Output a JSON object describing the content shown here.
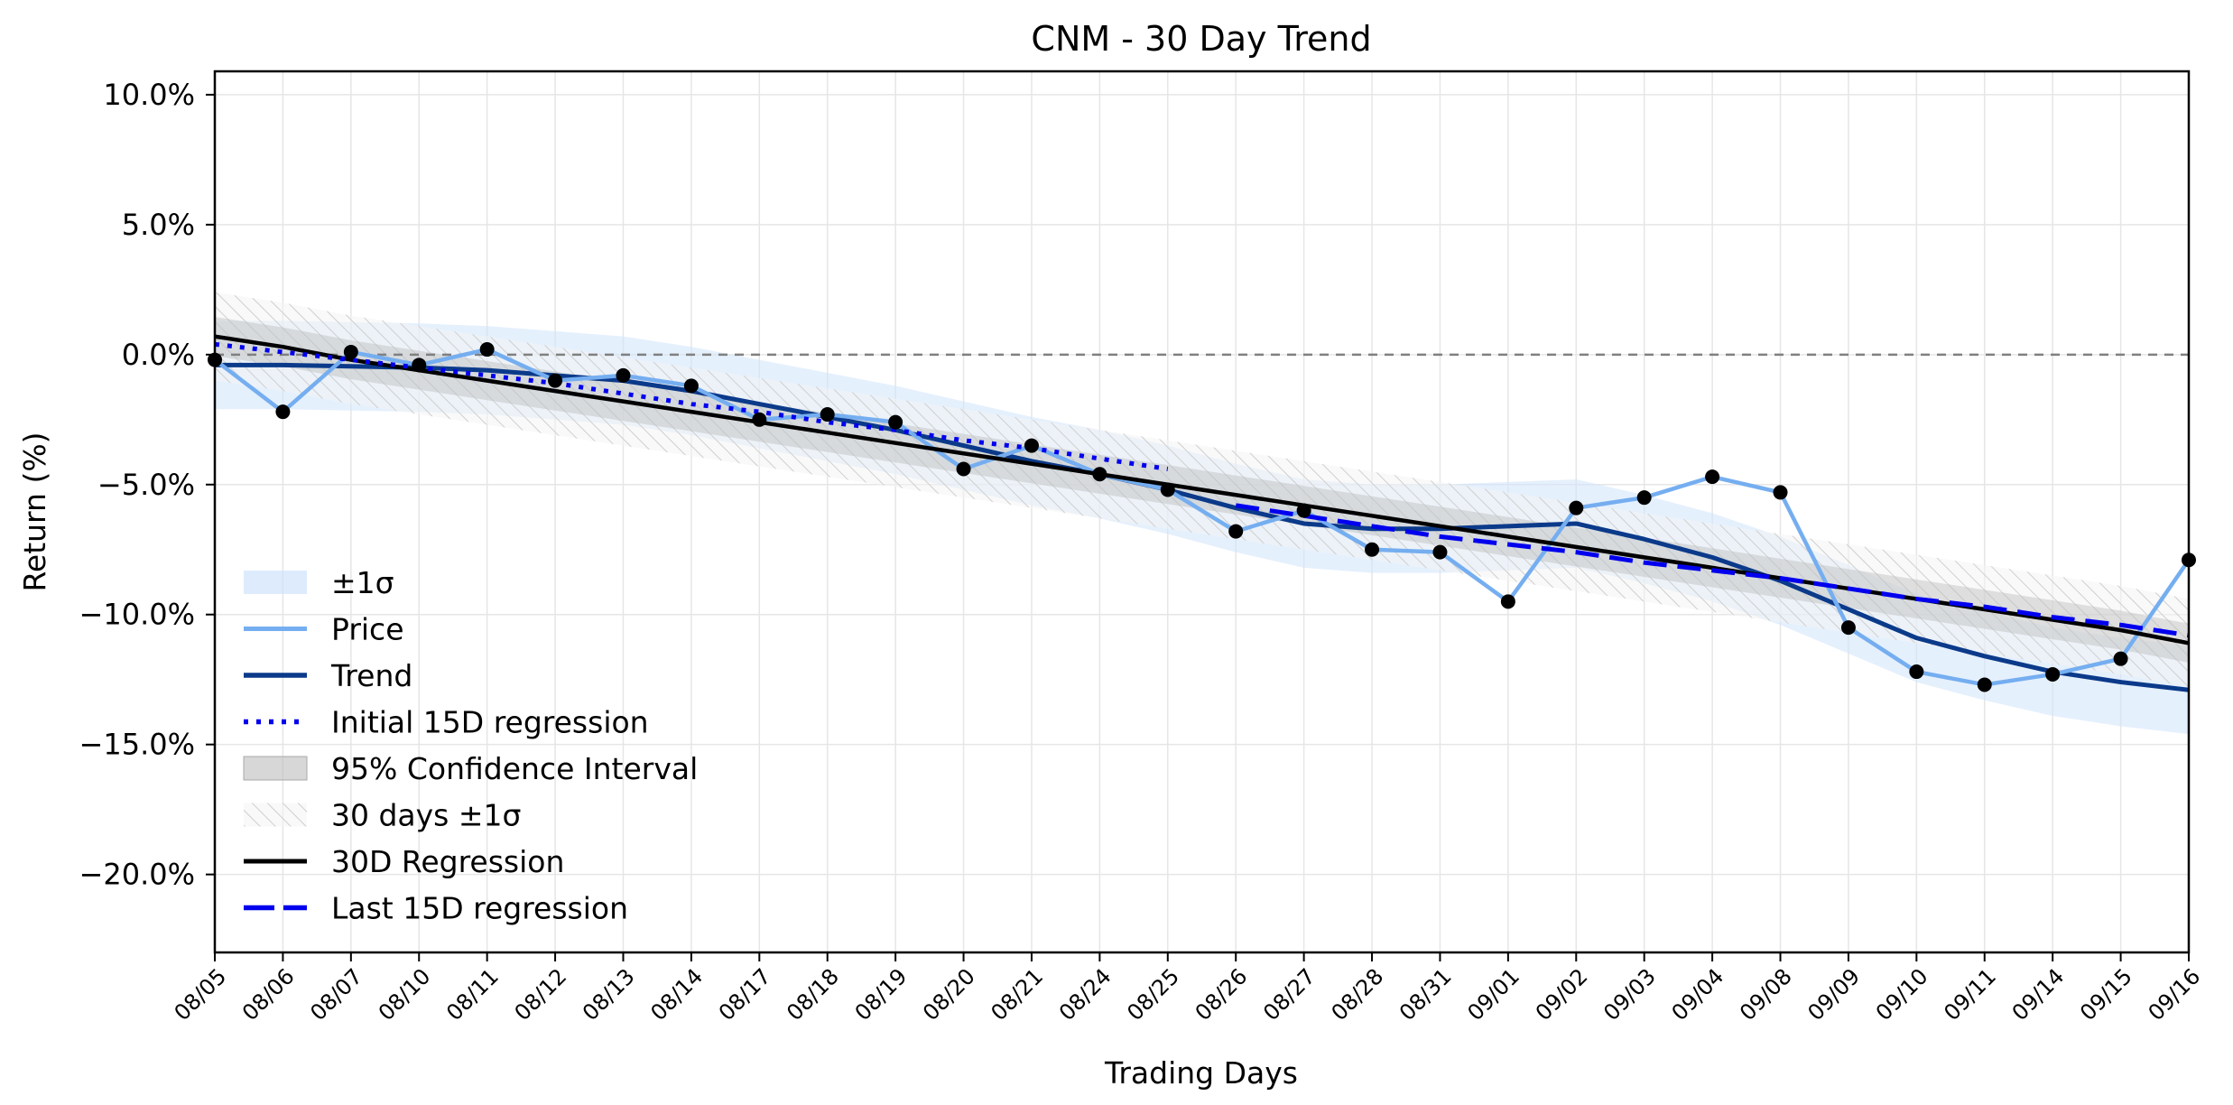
{
  "chart_data": {
    "type": "line",
    "title": "CNM - 30 Day Trend",
    "xlabel": "Trading Days",
    "ylabel": "Return (%)",
    "ylim": [
      -23,
      10.9
    ],
    "yticks": [
      10,
      5,
      0,
      -5,
      -10,
      -15,
      -20
    ],
    "ytick_labels": [
      "10.0%",
      "5.0%",
      "0.0%",
      "−5.0%",
      "−10.0%",
      "−15.0%",
      "−20.0%"
    ],
    "grid": true,
    "legend_position": "lower-left",
    "categories": [
      "08/05",
      "08/06",
      "08/07",
      "08/10",
      "08/11",
      "08/12",
      "08/13",
      "08/14",
      "08/17",
      "08/18",
      "08/19",
      "08/20",
      "08/21",
      "08/24",
      "08/25",
      "08/26",
      "08/27",
      "08/28",
      "08/31",
      "09/01",
      "09/02",
      "09/03",
      "09/04",
      "09/08",
      "09/09",
      "09/10",
      "09/11",
      "09/14",
      "09/15",
      "09/16"
    ],
    "series": [
      {
        "name": "Price",
        "color": "#75aef0",
        "values": [
          -0.2,
          -2.2,
          0.1,
          -0.4,
          0.2,
          -1.0,
          -0.8,
          -1.2,
          -2.5,
          -2.3,
          -2.6,
          -4.4,
          -3.5,
          -4.6,
          -5.2,
          -6.8,
          -6.0,
          -7.5,
          -7.6,
          -9.5,
          -5.9,
          -5.5,
          -4.7,
          -5.3,
          -10.5,
          -12.2,
          -12.7,
          -12.3,
          -11.7,
          -7.9
        ]
      },
      {
        "name": "Trend",
        "color": "#0b3a8a",
        "values": [
          -0.4,
          -0.4,
          -0.45,
          -0.5,
          -0.6,
          -0.8,
          -1.0,
          -1.4,
          -1.9,
          -2.4,
          -2.9,
          -3.5,
          -4.1,
          -4.6,
          -5.2,
          -5.9,
          -6.5,
          -6.7,
          -6.7,
          -6.6,
          -6.5,
          -7.1,
          -7.8,
          -8.7,
          -9.8,
          -10.9,
          -11.6,
          -12.2,
          -12.6,
          -12.9
        ]
      },
      {
        "name": "Initial 15D regression",
        "color": "#0000ee",
        "values": [
          0.4,
          0.1,
          -0.2,
          -0.5,
          -0.8,
          -1.1,
          -1.5,
          -1.9,
          -2.2,
          -2.6,
          -2.9,
          -3.3,
          -3.6,
          -4.0,
          -4.4,
          null,
          null,
          null,
          null,
          null,
          null,
          null,
          null,
          null,
          null,
          null,
          null,
          null,
          null,
          null
        ]
      },
      {
        "name": "30D Regression",
        "color": "#000000",
        "values": [
          0.7,
          0.3,
          -0.2,
          -0.6,
          -1.0,
          -1.4,
          -1.8,
          -2.2,
          -2.6,
          -3.0,
          -3.4,
          -3.8,
          -4.2,
          -4.6,
          -5.0,
          -5.4,
          -5.8,
          -6.2,
          -6.6,
          -7.0,
          -7.4,
          -7.8,
          -8.2,
          -8.6,
          -9.0,
          -9.4,
          -9.8,
          -10.2,
          -10.6,
          -11.1
        ]
      },
      {
        "name": "Last 15D regression",
        "color": "#0000ee",
        "values": [
          null,
          null,
          null,
          null,
          null,
          null,
          null,
          null,
          null,
          null,
          null,
          null,
          null,
          null,
          null,
          -5.8,
          -6.2,
          -6.6,
          -7.0,
          -7.3,
          -7.6,
          -8.0,
          -8.3,
          -8.6,
          -9.0,
          -9.4,
          -9.7,
          -10.1,
          -10.4,
          -10.8
        ]
      }
    ],
    "bands": {
      "sigma_band_color": "#cfe3fb",
      "ci_band_color": "#bdbdbd",
      "hatched_band_color": "#cccccc"
    },
    "zero_line_color": "#808080",
    "legend": [
      "±1σ",
      "Price",
      "Trend",
      "Initial 15D regression",
      "95% Confidence Interval",
      "30 days ±1σ",
      "30D Regression",
      "Last 15D regression"
    ]
  }
}
